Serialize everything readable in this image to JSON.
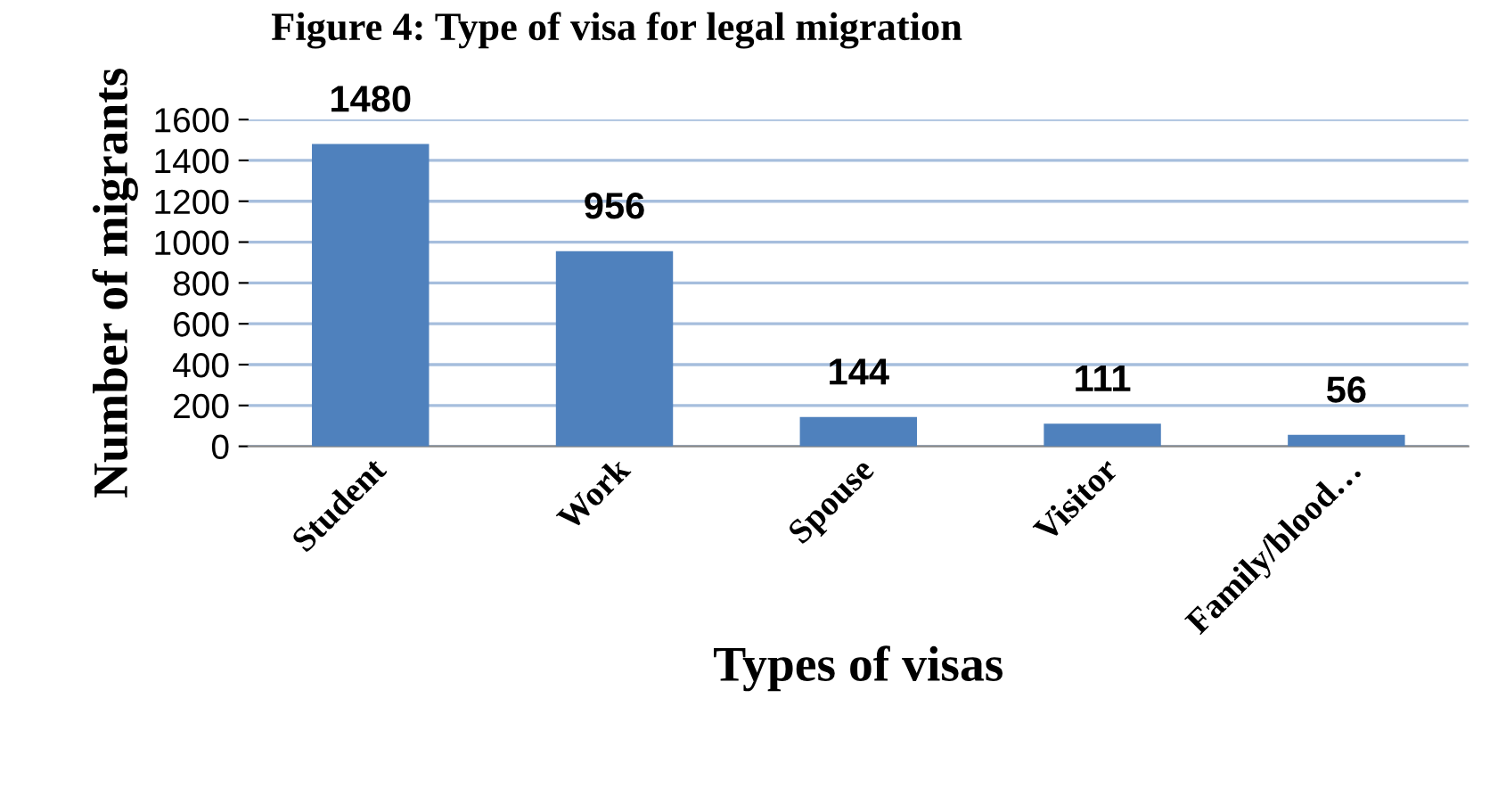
{
  "chart_data": {
    "type": "bar",
    "title": "Figure 4: Type of visa for legal migration",
    "xlabel": "Types of visas",
    "ylabel": "Number of migrants",
    "categories": [
      "Student",
      "Work",
      "Spouse",
      "Visitor",
      "Family/blood…"
    ],
    "values": [
      1480,
      956,
      144,
      111,
      56
    ],
    "color": "#4f81bd",
    "ylim": [
      0,
      1600
    ],
    "yticks": [
      0,
      200,
      400,
      600,
      800,
      1000,
      1200,
      1400,
      1600
    ],
    "grid": "y",
    "data_labels": true
  }
}
